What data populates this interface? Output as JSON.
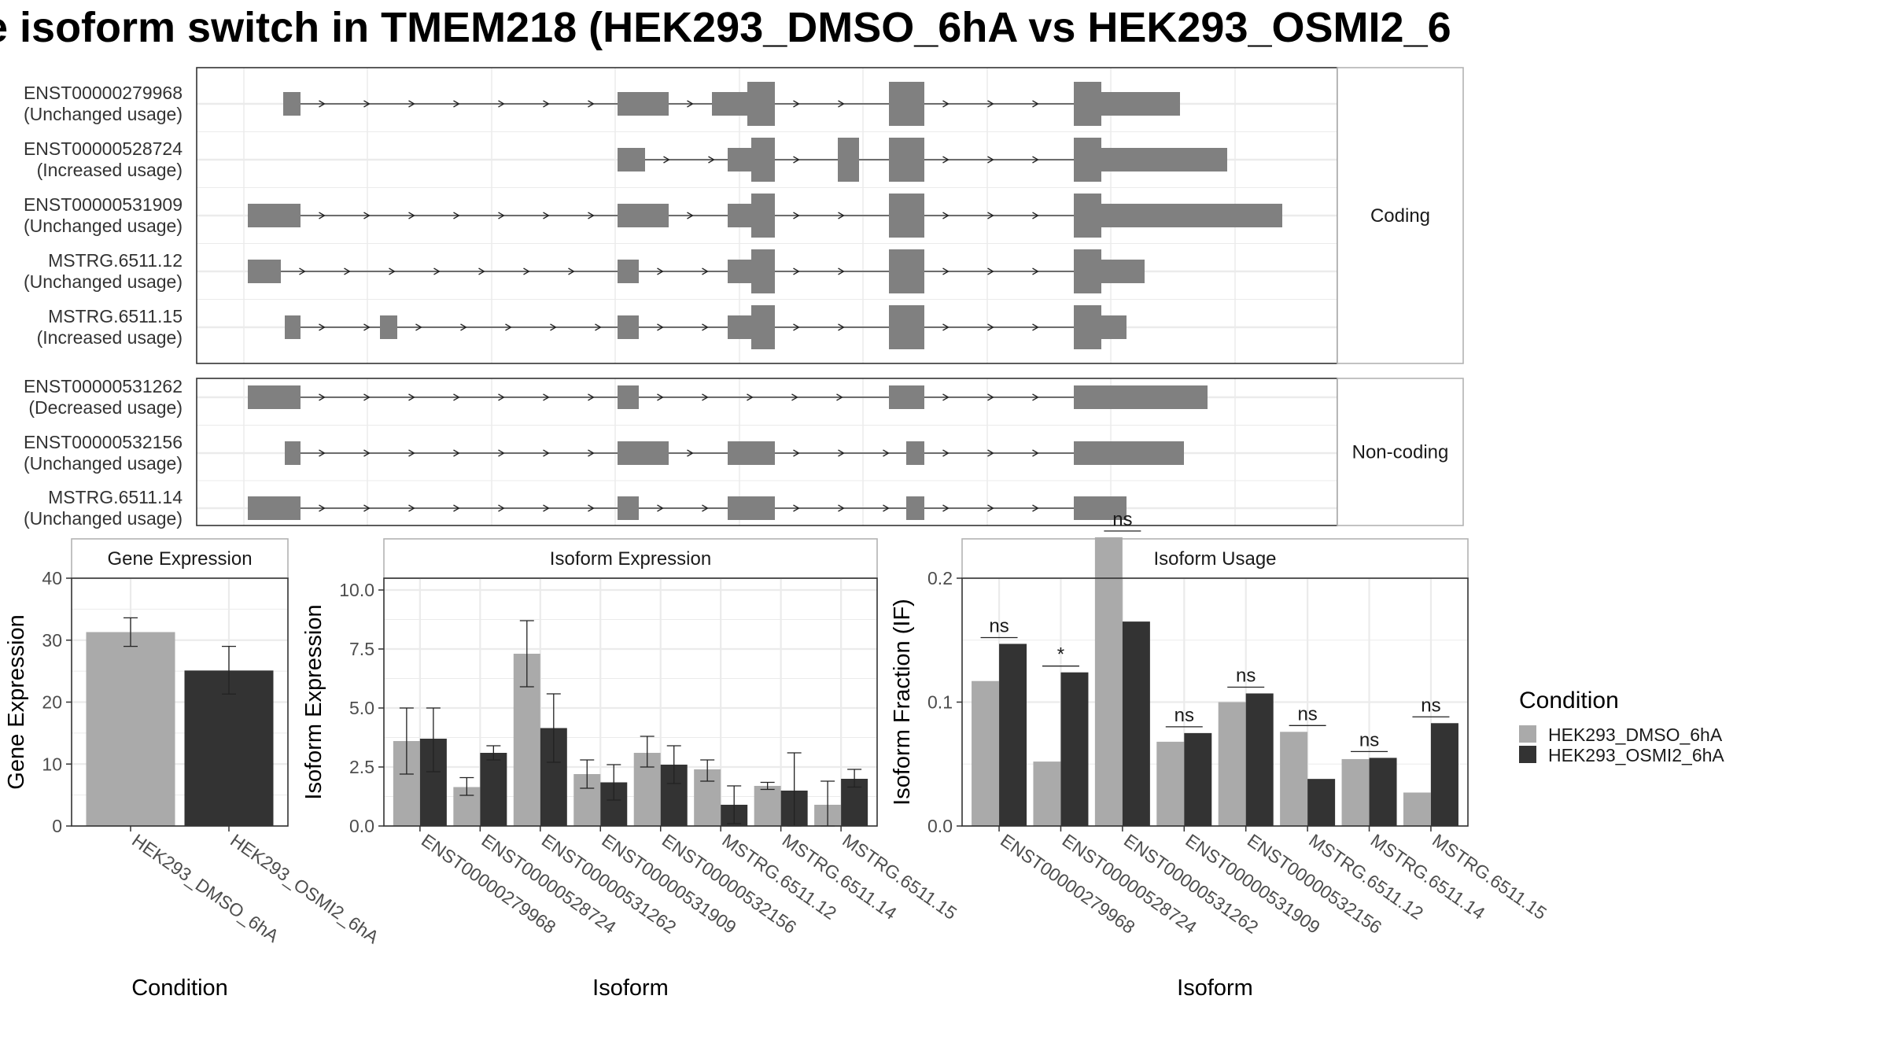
{
  "title": "e isoform switch in TMEM218 (HEK293_DMSO_6hA vs HEK293_OSMI2_6",
  "colors": {
    "dmso": "#aaaaaa",
    "osmi2": "#333333",
    "exon": "#808080",
    "panel_border": "#333333",
    "strip_border": "#b3b3b3",
    "grid": "#ebebeb"
  },
  "structure": {
    "coding_label": "Coding",
    "noncoding_label": "Non-coding",
    "coding": [
      {
        "id": "ENST00000279968",
        "usage": "(Unchanged usage)"
      },
      {
        "id": "ENST00000528724",
        "usage": "(Increased usage)"
      },
      {
        "id": "ENST00000531909",
        "usage": "(Unchanged usage)"
      },
      {
        "id": "MSTRG.6511.12",
        "usage": "(Unchanged usage)"
      },
      {
        "id": "MSTRG.6511.15",
        "usage": "(Increased usage)"
      }
    ],
    "noncoding": [
      {
        "id": "ENST00000531262",
        "usage": "(Decreased usage)"
      },
      {
        "id": "ENST00000532156",
        "usage": "(Unchanged usage)"
      },
      {
        "id": "MSTRG.6511.14",
        "usage": "(Unchanged usage)"
      }
    ]
  },
  "legend": {
    "title": "Condition",
    "items": [
      "HEK293_DMSO_6hA",
      "HEK293_OSMI2_6hA"
    ]
  },
  "chart_data": [
    {
      "type": "bar",
      "title": "Gene Expression",
      "xlabel": "Condition",
      "ylabel": "Gene Expression",
      "ylim": [
        0,
        40
      ],
      "yticks": [
        0,
        10,
        20,
        30,
        40
      ],
      "categories": [
        "HEK293_DMSO_6hA",
        "HEK293_OSMI2_6hA"
      ],
      "values": [
        31.3,
        25.1
      ],
      "err_low": [
        29.0,
        21.3
      ],
      "err_high": [
        33.6,
        29.0
      ]
    },
    {
      "type": "bar",
      "title": "Isoform Expression",
      "xlabel": "Isoform",
      "ylabel": "Isoform Expression",
      "ylim": [
        0,
        10.5
      ],
      "yticks": [
        "0.0",
        "2.5",
        "5.0",
        "7.5",
        "10.0"
      ],
      "categories": [
        "ENST00000279968",
        "ENST00000528724",
        "ENST00000531262",
        "ENST00000531909",
        "ENST00000532156",
        "MSTRG.6511.12",
        "MSTRG.6511.14",
        "MSTRG.6511.15"
      ],
      "series": [
        {
          "name": "HEK293_DMSO_6hA",
          "values": [
            3.6,
            1.65,
            7.3,
            2.2,
            3.1,
            2.4,
            1.7,
            0.9
          ],
          "err_low": [
            2.2,
            1.3,
            5.9,
            1.6,
            2.5,
            1.9,
            1.55,
            0.0
          ],
          "err_high": [
            5.0,
            2.05,
            8.7,
            2.8,
            3.8,
            2.8,
            1.85,
            1.9
          ]
        },
        {
          "name": "HEK293_OSMI2_6hA",
          "values": [
            3.7,
            3.1,
            4.15,
            1.85,
            2.6,
            0.9,
            1.5,
            2.0
          ],
          "err_low": [
            2.3,
            2.8,
            2.7,
            1.1,
            1.8,
            0.1,
            0.0,
            1.65
          ],
          "err_high": [
            5.0,
            3.4,
            5.6,
            2.6,
            3.4,
            1.7,
            3.1,
            2.4
          ]
        }
      ]
    },
    {
      "type": "bar",
      "title": "Isoform Usage",
      "xlabel": "Isoform",
      "ylabel": "Isoform Fraction (IF)",
      "ylim": [
        0,
        0.2
      ],
      "yticks": [
        "0.0",
        "0.1",
        "0.2"
      ],
      "categories": [
        "ENST00000279968",
        "ENST00000528724",
        "ENST00000531262",
        "ENST00000531909",
        "ENST00000532156",
        "MSTRG.6511.12",
        "MSTRG.6511.14",
        "MSTRG.6511.15"
      ],
      "series": [
        {
          "name": "HEK293_DMSO_6hA",
          "values": [
            0.117,
            0.052,
            0.233,
            0.068,
            0.1,
            0.076,
            0.054,
            0.027
          ]
        },
        {
          "name": "HEK293_OSMI2_6hA",
          "values": [
            0.147,
            0.124,
            0.165,
            0.075,
            0.107,
            0.038,
            0.055,
            0.083
          ]
        }
      ],
      "significance": [
        "ns",
        "*",
        "ns",
        "ns",
        "ns",
        "ns",
        "ns",
        "ns"
      ]
    }
  ]
}
